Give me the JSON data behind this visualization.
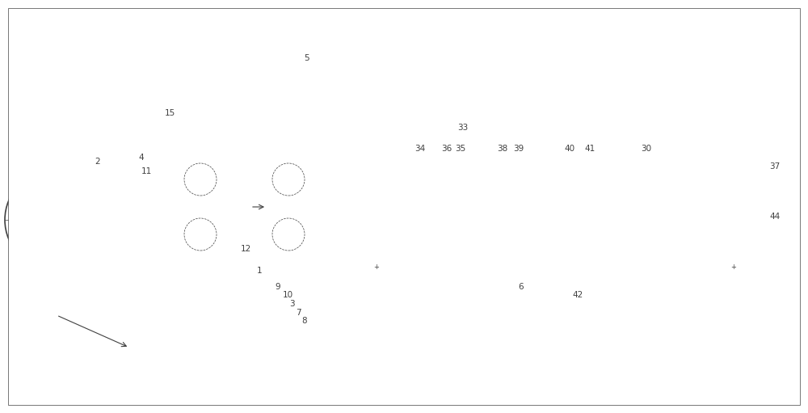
{
  "bg_color": "#ffffff",
  "line_color": "#404040",
  "line_width": 1.0,
  "thin_line": 0.5,
  "thick_line": 1.5,
  "label_fontsize": 7.5,
  "fig_width": 10.0,
  "fig_height": 5.11,
  "dpi": 100
}
